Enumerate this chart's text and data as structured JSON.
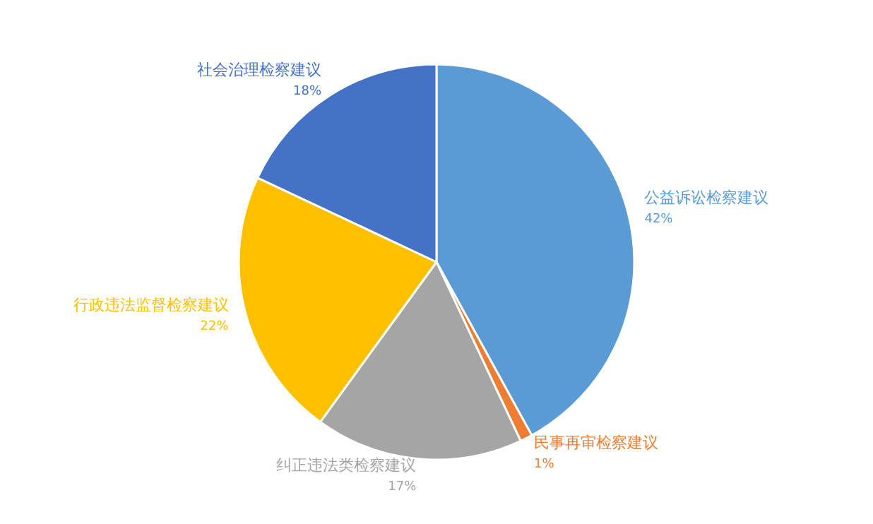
{
  "chart_data": {
    "type": "pie",
    "categories": [
      "公益诉讼检察建议",
      "民事再审检察建议",
      "纠正违法类检察建议",
      "行政违法监督检察建议",
      "社会治理检察建议"
    ],
    "values": [
      42,
      1,
      17,
      22,
      18
    ],
    "value_labels": [
      "42%",
      "1%",
      "17%",
      "22%",
      "18%"
    ],
    "colors": [
      "#5b9bd5",
      "#ed7d31",
      "#a5a5a5",
      "#ffc000",
      "#4472c4"
    ]
  }
}
